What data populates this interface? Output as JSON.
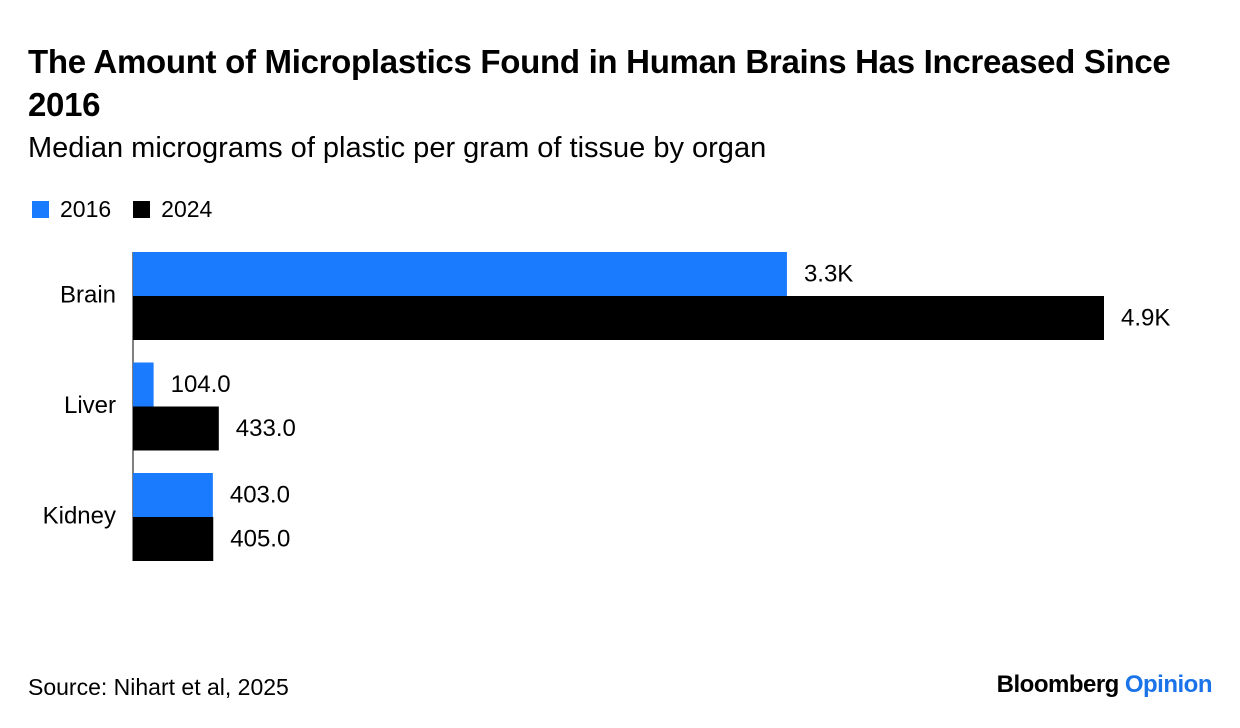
{
  "title": "The Amount of Microplastics Found in Human Brains Has Increased Since 2016",
  "subtitle": "Median micrograms of plastic per gram of tissue by organ",
  "source": "Source: Nihart et al, 2025",
  "brand": {
    "name": "Bloomberg",
    "section": "Opinion"
  },
  "colors": {
    "2016": "#1a7bff",
    "2024": "#000000",
    "brand_accent": "#1a73e8"
  },
  "chart_data": {
    "type": "bar",
    "orientation": "horizontal",
    "title": "The Amount of Microplastics Found in Human Brains Has Increased Since 2016",
    "subtitle": "Median micrograms of plastic per gram of tissue by organ",
    "categories": [
      "Brain",
      "Liver",
      "Kidney"
    ],
    "series": [
      {
        "name": "2016",
        "values": [
          3300,
          104,
          403
        ],
        "labels": [
          "3.3K",
          "104.0",
          "403.0"
        ]
      },
      {
        "name": "2024",
        "values": [
          4900,
          433,
          405
        ],
        "labels": [
          "4.9K",
          "433.0",
          "405.0"
        ]
      }
    ],
    "xlim": [
      0,
      4900
    ],
    "legend": "top-left",
    "grid": false
  }
}
